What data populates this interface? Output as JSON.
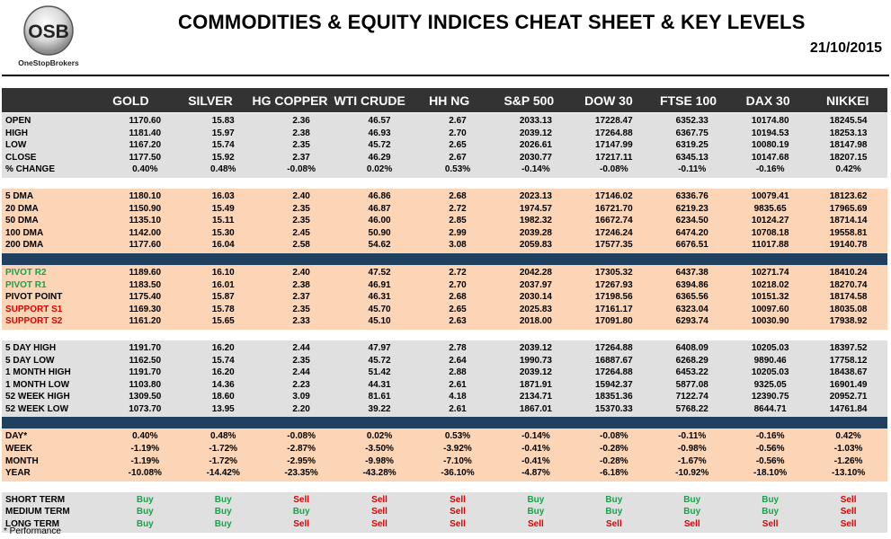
{
  "brand": {
    "initials": "OSB",
    "name": "OneStopBrokers"
  },
  "title": "COMMODITIES & EQUITY INDICES CHEAT SHEET & KEY LEVELS",
  "date": "21/10/2015",
  "columns": [
    "GOLD",
    "SILVER",
    "HG COPPER",
    "WTI CRUDE",
    "HH NG",
    "S&P 500",
    "DOW 30",
    "FTSE 100",
    "DAX 30",
    "NIKKEI"
  ],
  "sections": [
    {
      "rows": [
        {
          "label": "OPEN",
          "values": [
            "1170.60",
            "15.83",
            "2.36",
            "46.57",
            "2.67",
            "2033.13",
            "17228.47",
            "6352.33",
            "10174.80",
            "18245.54"
          ]
        },
        {
          "label": "HIGH",
          "values": [
            "1181.40",
            "15.97",
            "2.38",
            "46.93",
            "2.70",
            "2039.12",
            "17264.88",
            "6367.75",
            "10194.53",
            "18253.13"
          ]
        },
        {
          "label": "LOW",
          "values": [
            "1167.20",
            "15.74",
            "2.35",
            "45.72",
            "2.65",
            "2026.61",
            "17147.99",
            "6319.25",
            "10080.19",
            "18147.98"
          ]
        },
        {
          "label": "CLOSE",
          "values": [
            "1177.50",
            "15.92",
            "2.37",
            "46.29",
            "2.67",
            "2030.77",
            "17217.11",
            "6345.13",
            "10147.68",
            "18207.15"
          ]
        },
        {
          "label": "% CHANGE",
          "values": [
            "0.40%",
            "0.48%",
            "-0.08%",
            "0.02%",
            "0.53%",
            "-0.14%",
            "-0.08%",
            "-0.11%",
            "-0.16%",
            "0.42%"
          ]
        }
      ]
    },
    {
      "rows": [
        {
          "label": "5 DMA",
          "values": [
            "1180.10",
            "16.03",
            "2.40",
            "46.86",
            "2.68",
            "2023.13",
            "17146.02",
            "6336.76",
            "10079.41",
            "18123.62"
          ]
        },
        {
          "label": "20 DMA",
          "values": [
            "1150.90",
            "15.49",
            "2.35",
            "46.87",
            "2.72",
            "1974.57",
            "16721.70",
            "6219.23",
            "9835.65",
            "17965.69"
          ]
        },
        {
          "label": "50 DMA",
          "values": [
            "1135.10",
            "15.11",
            "2.35",
            "46.00",
            "2.85",
            "1982.32",
            "16672.74",
            "6234.50",
            "10124.27",
            "18714.14"
          ]
        },
        {
          "label": "100 DMA",
          "values": [
            "1142.00",
            "15.30",
            "2.45",
            "50.90",
            "2.99",
            "2039.28",
            "17246.24",
            "6474.20",
            "10708.18",
            "19558.81"
          ]
        },
        {
          "label": "200 DMA",
          "values": [
            "1177.60",
            "16.04",
            "2.58",
            "54.62",
            "3.08",
            "2059.83",
            "17577.35",
            "6676.51",
            "11017.88",
            "19140.78"
          ]
        }
      ]
    },
    {
      "rows": [
        {
          "label": "PIVOT R2",
          "label_color": "green",
          "values": [
            "1189.60",
            "16.10",
            "2.40",
            "47.52",
            "2.72",
            "2042.28",
            "17305.32",
            "6437.38",
            "10271.74",
            "18410.24"
          ]
        },
        {
          "label": "PIVOT R1",
          "label_color": "green",
          "values": [
            "1183.50",
            "16.01",
            "2.38",
            "46.91",
            "2.70",
            "2037.97",
            "17267.93",
            "6394.86",
            "10218.02",
            "18270.74"
          ]
        },
        {
          "label": "PIVOT POINT",
          "values": [
            "1175.40",
            "15.87",
            "2.37",
            "46.31",
            "2.68",
            "2030.14",
            "17198.56",
            "6365.56",
            "10151.32",
            "18174.58"
          ]
        },
        {
          "label": "SUPPORT S1",
          "label_color": "red",
          "values": [
            "1169.30",
            "15.78",
            "2.35",
            "45.70",
            "2.65",
            "2025.83",
            "17161.17",
            "6323.04",
            "10097.60",
            "18035.08"
          ]
        },
        {
          "label": "SUPPORT S2",
          "label_color": "red",
          "values": [
            "1161.20",
            "15.65",
            "2.33",
            "45.10",
            "2.63",
            "2018.00",
            "17091.80",
            "6293.74",
            "10030.90",
            "17938.92"
          ]
        }
      ]
    },
    {
      "rows": [
        {
          "label": "5 DAY HIGH",
          "values": [
            "1191.70",
            "16.20",
            "2.44",
            "47.97",
            "2.78",
            "2039.12",
            "17264.88",
            "6408.09",
            "10205.03",
            "18397.52"
          ]
        },
        {
          "label": "5 DAY LOW",
          "values": [
            "1162.50",
            "15.74",
            "2.35",
            "45.72",
            "2.64",
            "1990.73",
            "16887.67",
            "6268.29",
            "9890.46",
            "17758.12"
          ]
        },
        {
          "label": "1 MONTH HIGH",
          "values": [
            "1191.70",
            "16.20",
            "2.44",
            "51.42",
            "2.88",
            "2039.12",
            "17264.88",
            "6453.22",
            "10205.03",
            "18438.67"
          ]
        },
        {
          "label": "1 MONTH LOW",
          "values": [
            "1103.80",
            "14.36",
            "2.23",
            "44.31",
            "2.61",
            "1871.91",
            "15942.37",
            "5877.08",
            "9325.05",
            "16901.49"
          ]
        },
        {
          "label": "52 WEEK HIGH",
          "values": [
            "1309.50",
            "18.60",
            "3.09",
            "81.61",
            "4.18",
            "2134.71",
            "18351.36",
            "7122.74",
            "12390.75",
            "20952.71"
          ]
        },
        {
          "label": "52 WEEK LOW",
          "values": [
            "1073.70",
            "13.95",
            "2.20",
            "39.22",
            "2.61",
            "1867.01",
            "15370.33",
            "5768.22",
            "8644.71",
            "14761.84"
          ]
        }
      ]
    },
    {
      "rows": [
        {
          "label": "DAY*",
          "values": [
            "0.40%",
            "0.48%",
            "-0.08%",
            "0.02%",
            "0.53%",
            "-0.14%",
            "-0.08%",
            "-0.11%",
            "-0.16%",
            "0.42%"
          ]
        },
        {
          "label": "WEEK",
          "values": [
            "-1.19%",
            "-1.72%",
            "-2.87%",
            "-3.50%",
            "-3.92%",
            "-0.41%",
            "-0.28%",
            "-0.98%",
            "-0.56%",
            "-1.03%"
          ]
        },
        {
          "label": "MONTH",
          "values": [
            "-1.19%",
            "-1.72%",
            "-2.95%",
            "-9.98%",
            "-7.10%",
            "-0.41%",
            "-0.28%",
            "-1.67%",
            "-0.56%",
            "-1.26%"
          ]
        },
        {
          "label": "YEAR",
          "values": [
            "-10.08%",
            "-14.42%",
            "-23.35%",
            "-43.28%",
            "-36.10%",
            "-4.87%",
            "-6.18%",
            "-10.92%",
            "-18.10%",
            "-13.10%"
          ]
        }
      ]
    },
    {
      "rows": [
        {
          "label": "SHORT TERM",
          "values": [
            "Buy",
            "Buy",
            "Sell",
            "Sell",
            "Sell",
            "Buy",
            "Buy",
            "Buy",
            "Buy",
            "Sell"
          ]
        },
        {
          "label": "MEDIUM TERM",
          "values": [
            "Buy",
            "Buy",
            "Buy",
            "Sell",
            "Sell",
            "Buy",
            "Buy",
            "Buy",
            "Buy",
            "Sell"
          ]
        },
        {
          "label": "LONG TERM",
          "values": [
            "Buy",
            "Buy",
            "Sell",
            "Sell",
            "Sell",
            "Sell",
            "Sell",
            "Sell",
            "Sell",
            "Sell"
          ]
        }
      ]
    }
  ],
  "footnote": "* Performance",
  "colors": {
    "header_bg": "#333333",
    "gray_bg": "#e0e0e0",
    "peach_bg": "#fbd5b5",
    "blue_bar": "#204060",
    "buy": "#16a34a",
    "sell": "#e00000"
  }
}
